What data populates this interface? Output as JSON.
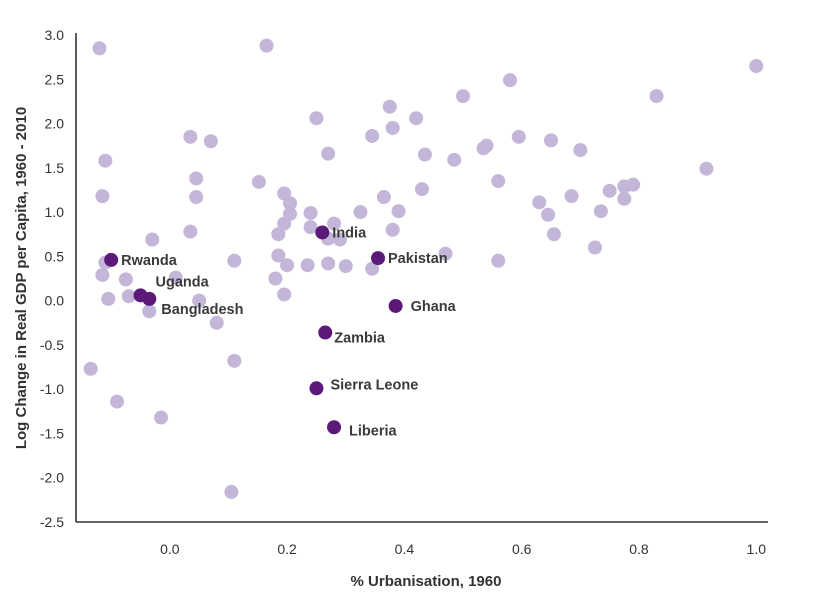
{
  "chart_data": {
    "type": "scatter",
    "title": "",
    "xlabel": "% Urbanisation, 1960",
    "ylabel": "Log Change in Real GDP per Capita, 1960 - 2010",
    "xlim": [
      -0.16,
      1.02
    ],
    "ylim": [
      -2.5,
      3.0
    ],
    "x_ticks": [
      0.0,
      0.2,
      0.4,
      0.6,
      0.8,
      1.0
    ],
    "x_tick_labels": [
      "0.0",
      "0.2",
      "0.4",
      "0.6",
      "0.8",
      "1.0"
    ],
    "y_ticks": [
      3.0,
      2.5,
      2.0,
      1.5,
      1.0,
      0.5,
      0.0,
      -0.5,
      -1.0,
      -1.5,
      -2.0,
      -2.5
    ],
    "y_tick_labels": [
      "3.0",
      "2.5",
      "2.0",
      "1.5",
      "1.0",
      "0.5",
      "0.0",
      "-0.5",
      "-1.0",
      "-1.5",
      "-2.0",
      "-2.5"
    ],
    "grid": false,
    "colors": {
      "other": "#c3b6d8",
      "highlight": "#5b1a7a",
      "axis": "#333333"
    },
    "series": [
      {
        "values": [
          [
            -0.12,
            2.85
          ],
          [
            0.165,
            2.88
          ],
          [
            1.0,
            2.65
          ],
          [
            0.58,
            2.49
          ],
          [
            0.5,
            2.31
          ],
          [
            0.83,
            2.31
          ],
          [
            0.375,
            2.19
          ],
          [
            0.25,
            2.06
          ],
          [
            0.42,
            2.06
          ],
          [
            0.035,
            1.85
          ],
          [
            0.07,
            1.8
          ],
          [
            0.38,
            1.95
          ],
          [
            0.345,
            1.86
          ],
          [
            0.595,
            1.85
          ],
          [
            0.535,
            1.72
          ],
          [
            0.54,
            1.75
          ],
          [
            0.65,
            1.81
          ],
          [
            0.7,
            1.7
          ],
          [
            0.27,
            1.66
          ],
          [
            0.435,
            1.65
          ],
          [
            0.485,
            1.59
          ],
          [
            -0.11,
            1.58
          ],
          [
            0.045,
            1.38
          ],
          [
            0.152,
            1.34
          ],
          [
            0.56,
            1.35
          ],
          [
            -0.115,
            1.18
          ],
          [
            0.045,
            1.17
          ],
          [
            0.195,
            1.21
          ],
          [
            0.365,
            1.17
          ],
          [
            0.43,
            1.26
          ],
          [
            0.205,
            1.1
          ],
          [
            0.75,
            1.24
          ],
          [
            0.775,
            1.29
          ],
          [
            0.79,
            1.31
          ],
          [
            0.685,
            1.18
          ],
          [
            0.775,
            1.15
          ],
          [
            0.915,
            1.49
          ],
          [
            0.63,
            1.11
          ],
          [
            0.24,
            0.99
          ],
          [
            0.325,
            1.0
          ],
          [
            0.39,
            1.01
          ],
          [
            0.645,
            0.97
          ],
          [
            0.735,
            1.01
          ],
          [
            0.205,
            0.98
          ],
          [
            0.195,
            0.87
          ],
          [
            0.24,
            0.83
          ],
          [
            0.28,
            0.87
          ],
          [
            0.38,
            0.8
          ],
          [
            0.035,
            0.78
          ],
          [
            0.185,
            0.75
          ],
          [
            0.27,
            0.7
          ],
          [
            0.29,
            0.69
          ],
          [
            0.655,
            0.75
          ],
          [
            -0.03,
            0.69
          ],
          [
            0.725,
            0.6
          ],
          [
            0.47,
            0.53
          ],
          [
            0.185,
            0.51
          ],
          [
            -0.11,
            0.43
          ],
          [
            0.11,
            0.45
          ],
          [
            0.235,
            0.4
          ],
          [
            0.27,
            0.42
          ],
          [
            0.3,
            0.39
          ],
          [
            0.345,
            0.36
          ],
          [
            0.2,
            0.4
          ],
          [
            0.56,
            0.45
          ],
          [
            -0.115,
            0.29
          ],
          [
            -0.075,
            0.24
          ],
          [
            0.01,
            0.26
          ],
          [
            0.18,
            0.25
          ],
          [
            -0.07,
            0.05
          ],
          [
            -0.105,
            0.02
          ],
          [
            0.05,
            0.0
          ],
          [
            0.195,
            0.07
          ],
          [
            -0.035,
            -0.12
          ],
          [
            0.08,
            -0.25
          ],
          [
            0.11,
            -0.68
          ],
          [
            -0.135,
            -0.77
          ],
          [
            -0.09,
            -1.14
          ],
          [
            -0.015,
            -1.32
          ],
          [
            0.105,
            -2.16
          ]
        ]
      },
      {
        "points": [
          {
            "label": "Rwanda",
            "x": -0.1,
            "y": 0.46
          },
          {
            "label": "Uganda",
            "x": -0.05,
            "y": 0.06
          },
          {
            "label": "Bangladesh",
            "x": -0.035,
            "y": 0.02
          },
          {
            "label": "India",
            "x": 0.26,
            "y": 0.77
          },
          {
            "label": "Pakistan",
            "x": 0.355,
            "y": 0.48
          },
          {
            "label": "Ghana",
            "x": 0.385,
            "y": -0.06
          },
          {
            "label": "Zambia",
            "x": 0.265,
            "y": -0.36
          },
          {
            "label": "Sierra Leone",
            "x": 0.25,
            "y": -0.99
          },
          {
            "label": "Liberia",
            "x": 0.28,
            "y": -1.43
          }
        ]
      }
    ]
  }
}
